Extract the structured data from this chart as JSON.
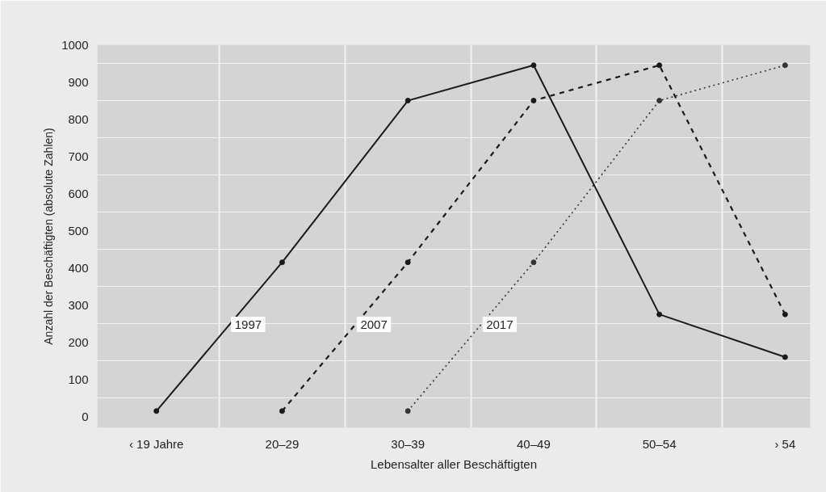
{
  "chart_data": {
    "type": "line",
    "xlabel": "Lebensalter aller Beschäftigten",
    "ylabel": "Anzahl der Beschäftigten (absolute Zahlen)",
    "categories": [
      "‹ 19 Jahre",
      "20–29",
      "30–39",
      "40–49",
      "50–54",
      "› 54"
    ],
    "ylim": [
      -30,
      1000
    ],
    "yticks": [
      0,
      100,
      200,
      300,
      400,
      500,
      600,
      700,
      800,
      900,
      1000
    ],
    "grid": true,
    "marker": "circle",
    "series": [
      {
        "name": "1997",
        "color": "#1a1a1a",
        "line_style": "solid",
        "values": [
          15,
          415,
          850,
          945,
          275,
          160
        ]
      },
      {
        "name": "2007",
        "color": "#1a1a1a",
        "line_style": "dashed",
        "values": [
          null,
          15,
          415,
          850,
          945,
          275
        ]
      },
      {
        "name": "2017",
        "color": "#333333",
        "line_style": "dotted",
        "values": [
          null,
          null,
          15,
          415,
          850,
          945
        ]
      }
    ]
  }
}
